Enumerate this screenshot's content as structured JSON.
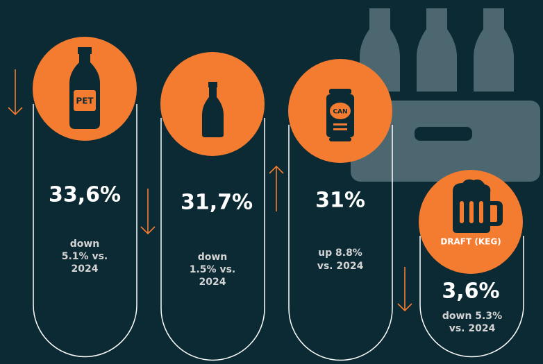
{
  "items": [
    {
      "icon_label": "PET",
      "value": "33,6%",
      "note": [
        "down",
        "5.1% vs.",
        "2024"
      ]
    },
    {
      "value": "31,7%",
      "note": [
        "down",
        "1.5% vs.",
        "2024"
      ]
    },
    {
      "icon_label": "CAN",
      "value": "31%",
      "note": [
        "up 8.8%",
        "vs. 2024"
      ]
    },
    {
      "icon_label": "DRAFT (KEG)",
      "value": "3,6%",
      "note": [
        "down 5.3%",
        "vs. 2024"
      ]
    }
  ]
}
